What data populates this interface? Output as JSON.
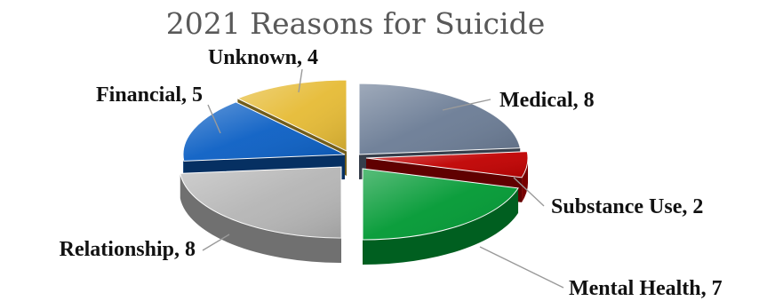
{
  "chart_data": {
    "type": "pie",
    "title": "2021 Reasons for Suicide",
    "slices": [
      {
        "label": "Medical",
        "value": 8,
        "color": "#6b7c95",
        "display": "Medical, 8"
      },
      {
        "label": "Substance Use",
        "value": 2,
        "color": "#c00000",
        "display": "Substance Use, 2"
      },
      {
        "label": "Mental Health",
        "value": 7,
        "color": "#009933",
        "display": "Mental Health, 7"
      },
      {
        "label": "Relationship",
        "value": 8,
        "color": "#b5b5b5",
        "display": "Relationship, 8"
      },
      {
        "label": "Financial",
        "value": 5,
        "color": "#0b5fc4",
        "display": "Financial, 5"
      },
      {
        "label": "Unknown",
        "value": 4,
        "color": "#e6bb35",
        "display": "Unknown, 4"
      }
    ],
    "style": "3d-exploded",
    "legend": "none"
  }
}
